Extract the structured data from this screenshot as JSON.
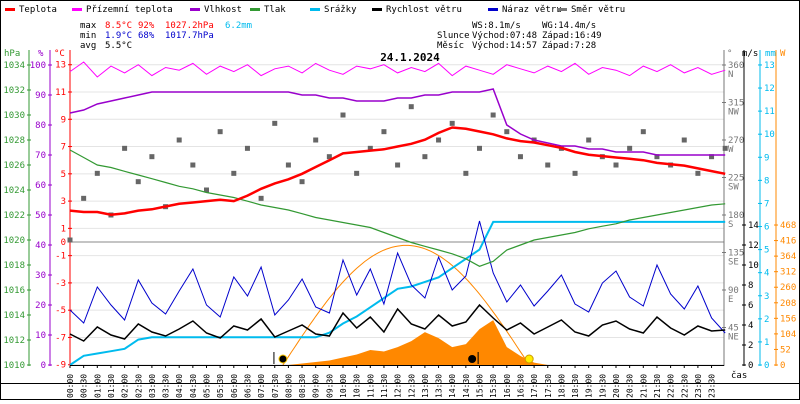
{
  "chart_data": {
    "type": "line",
    "title": "24.1.2024",
    "legend": [
      {
        "name": "Teplota",
        "color": "#ff0000"
      },
      {
        "name": "Přízemní teplota",
        "color": "#ff00ff"
      },
      {
        "name": "Vlhkost",
        "color": "#9900cc"
      },
      {
        "name": "Tlak",
        "color": "#339933"
      },
      {
        "name": "Srážky",
        "color": "#00bbee"
      },
      {
        "name": "Rychlost větru",
        "color": "#000000"
      },
      {
        "name": "Náraz větru",
        "color": "#0000cc"
      },
      {
        "name": "Směr větru",
        "color": "#777777"
      }
    ],
    "stats": {
      "max_label": "max",
      "min_label": "min",
      "avg_label": "avg",
      "max_temp": "8.5°C",
      "max_hum": "92%",
      "max_press": "1027.2hPa",
      "max_rain": "6.2mm",
      "min_temp": "1.9°C",
      "min_hum": "68%",
      "min_press": "1017.7hPa",
      "avg_temp": "5.5°C",
      "ws": "WS:8.1m/s",
      "wg": "WG:14.4m/s",
      "sun_label": "Slunce",
      "sun_rise": "Východ:07:48",
      "sun_set": "Západ:16:49",
      "moon_label": "Měsíc",
      "moon_rise": "Východ:14:57",
      "moon_set": "Západ:7:28"
    },
    "sun_times_h": {
      "moonset": 7.47,
      "sunrise": 7.8,
      "moonrise": 14.95,
      "sunset": 16.82
    },
    "clear_sky_peak_w": 400,
    "xlabel": "čas",
    "x_step_h": 0.5,
    "x_labels": [
      "00:00",
      "00:30",
      "01:00",
      "01:30",
      "02:00",
      "02:30",
      "03:00",
      "03:30",
      "04:00",
      "04:30",
      "05:00",
      "05:30",
      "06:00",
      "06:30",
      "07:00",
      "07:30",
      "08:00",
      "08:30",
      "09:00",
      "09:30",
      "10:00",
      "10:30",
      "11:00",
      "11:30",
      "12:00",
      "12:30",
      "13:00",
      "13:30",
      "14:00",
      "14:30",
      "15:00",
      "15:30",
      "16:00",
      "16:30",
      "17:00",
      "17:30",
      "18:00",
      "18:30",
      "19:00",
      "19:30",
      "20:00",
      "20:30",
      "21:00",
      "21:30",
      "22:00",
      "22:30",
      "23:00",
      "23:30"
    ],
    "axes": {
      "hpa": {
        "unit": "hPa",
        "range": [
          1010,
          1034
        ],
        "ticks": [
          "1010",
          "1012",
          "1014",
          "1016",
          "1018",
          "1020",
          "1022",
          "1024",
          "1026",
          "1028",
          "1030",
          "1032",
          "1034"
        ]
      },
      "percent": {
        "unit": "%",
        "range": [
          0,
          100
        ],
        "ticks": [
          "0",
          "10",
          "20",
          "30",
          "40",
          "50",
          "60",
          "70",
          "80",
          "90",
          "100"
        ]
      },
      "celsius": {
        "unit": "°C",
        "range": [
          -9,
          13
        ],
        "ticks": [
          "-9",
          "-7",
          "-5",
          "-3",
          "-1",
          "0",
          "1",
          "3",
          "5",
          "7",
          "9",
          "11",
          "13"
        ]
      },
      "degrees": {
        "unit": "°",
        "range": [
          0,
          360
        ],
        "ticks": [
          "45",
          "90",
          "135",
          "180",
          "225",
          "270",
          "315",
          "360"
        ],
        "compass": [
          "NE",
          "E",
          "SE",
          "S",
          "SW",
          "W",
          "NW",
          "N"
        ]
      },
      "ms": {
        "unit": "m/s",
        "range": [
          0,
          14
        ],
        "ticks": [
          "0",
          "2",
          "4",
          "6",
          "8",
          "10",
          "12",
          "14"
        ]
      },
      "mm": {
        "unit": "mm",
        "range": [
          0,
          13
        ],
        "ticks": [
          "0",
          "1",
          "2",
          "3",
          "4",
          "5",
          "6",
          "7",
          "8",
          "9",
          "10",
          "11",
          "12",
          "13"
        ]
      },
      "watt": {
        "unit": "W",
        "range": [
          0,
          468
        ],
        "ticks": [
          "0",
          "52",
          "104",
          "156",
          "208",
          "260",
          "312",
          "364",
          "416",
          "468"
        ]
      }
    },
    "series": {
      "temperature": [
        2.3,
        2.2,
        2.2,
        2.0,
        2.1,
        2.3,
        2.4,
        2.6,
        2.8,
        2.9,
        3.0,
        3.1,
        3.0,
        3.4,
        3.9,
        4.3,
        4.6,
        5.0,
        5.5,
        6.0,
        6.5,
        6.6,
        6.7,
        6.8,
        7.0,
        7.2,
        7.5,
        8.0,
        8.4,
        8.3,
        8.1,
        7.9,
        7.6,
        7.4,
        7.3,
        7.1,
        6.9,
        6.6,
        6.4,
        6.3,
        6.2,
        6.1,
        6.0,
        5.8,
        5.7,
        5.6,
        5.4,
        5.2,
        5.0
      ],
      "ground_temperature": [
        12.5,
        13.2,
        12.1,
        12.9,
        12.4,
        13.0,
        12.2,
        12.8,
        12.6,
        13.1,
        12.3,
        12.9,
        12.5,
        13.0,
        12.2,
        12.7,
        12.9,
        12.4,
        13.1,
        12.6,
        12.3,
        12.9,
        12.7,
        13.0,
        12.4,
        12.8,
        12.5,
        13.1,
        12.2,
        12.9,
        12.6,
        12.3,
        13.0,
        12.7,
        12.4,
        12.9,
        12.5,
        13.1,
        12.3,
        12.8,
        12.6,
        12.2,
        12.9,
        12.5,
        13.0,
        12.4,
        12.8,
        12.3,
        12.6
      ],
      "humidity": [
        84,
        85,
        87,
        88,
        89,
        90,
        91,
        91,
        91,
        91,
        91,
        91,
        91,
        91,
        91,
        91,
        91,
        90,
        90,
        89,
        89,
        88,
        88,
        88,
        89,
        89,
        90,
        90,
        91,
        91,
        91,
        92,
        80,
        77,
        75,
        74,
        73,
        73,
        72,
        72,
        71,
        71,
        71,
        70,
        70,
        70,
        70,
        70,
        70
      ],
      "pressure": [
        1027.2,
        1026.6,
        1026.0,
        1025.8,
        1025.5,
        1025.2,
        1024.9,
        1024.6,
        1024.3,
        1024.1,
        1023.8,
        1023.6,
        1023.4,
        1023.1,
        1022.8,
        1022.6,
        1022.4,
        1022.1,
        1021.8,
        1021.6,
        1021.4,
        1021.2,
        1021.0,
        1020.6,
        1020.2,
        1019.8,
        1019.5,
        1019.2,
        1018.9,
        1018.5,
        1017.9,
        1018.3,
        1019.2,
        1019.6,
        1020.0,
        1020.2,
        1020.4,
        1020.6,
        1020.9,
        1021.1,
        1021.3,
        1021.6,
        1021.8,
        1022.0,
        1022.2,
        1022.4,
        1022.6,
        1022.8,
        1022.9
      ],
      "precipitation": [
        0,
        0.4,
        0.5,
        0.6,
        0.7,
        1.1,
        1.2,
        1.2,
        1.2,
        1.2,
        1.2,
        1.2,
        1.2,
        1.2,
        1.2,
        1.2,
        1.2,
        1.2,
        1.2,
        1.4,
        1.8,
        2.1,
        2.5,
        2.9,
        3.3,
        3.4,
        3.6,
        3.8,
        4.2,
        4.6,
        5.0,
        6.2,
        6.2,
        6.2,
        6.2,
        6.2,
        6.2,
        6.2,
        6.2,
        6.2,
        6.2,
        6.2,
        6.2,
        6.2,
        6.2,
        6.2,
        6.2,
        6.2,
        6.2
      ],
      "wind_speed": [
        3.1,
        2.4,
        3.8,
        3.0,
        2.6,
        4.1,
        3.3,
        2.9,
        3.6,
        4.4,
        3.2,
        2.7,
        3.9,
        3.5,
        4.6,
        2.8,
        3.4,
        4.0,
        3.1,
        2.9,
        5.2,
        3.7,
        4.8,
        3.3,
        5.6,
        4.1,
        3.6,
        5.0,
        3.9,
        4.3,
        6.0,
        4.7,
        3.5,
        4.2,
        3.1,
        3.8,
        4.5,
        3.3,
        2.9,
        4.0,
        4.4,
        3.6,
        3.2,
        4.8,
        3.7,
        3.0,
        3.9,
        3.4,
        3.5
      ],
      "wind_gust": [
        5.5,
        4.2,
        7.8,
        6.0,
        4.5,
        8.5,
        6.2,
        5.1,
        7.4,
        9.6,
        6.0,
        4.8,
        8.8,
        6.9,
        9.8,
        5.0,
        6.5,
        8.6,
        5.8,
        5.2,
        10.5,
        7.0,
        9.6,
        6.1,
        11.2,
        8.0,
        6.7,
        10.8,
        7.5,
        8.9,
        14.4,
        9.2,
        6.3,
        8.0,
        5.9,
        7.4,
        9.0,
        6.1,
        5.3,
        8.2,
        9.4,
        6.8,
        5.9,
        10.0,
        7.1,
        5.6,
        7.9,
        4.7,
        3.2
      ],
      "wind_direction": [
        150,
        200,
        230,
        180,
        260,
        220,
        250,
        190,
        270,
        240,
        210,
        280,
        230,
        260,
        200,
        290,
        240,
        220,
        270,
        250,
        300,
        230,
        260,
        280,
        240,
        310,
        250,
        270,
        290,
        230,
        260,
        300,
        280,
        250,
        270,
        240,
        260,
        230,
        270,
        250,
        240,
        260,
        280,
        250,
        240,
        270,
        230,
        250,
        260
      ],
      "solar_radiation": [
        0,
        0,
        0,
        0,
        0,
        0,
        0,
        0,
        0,
        0,
        0,
        0,
        0,
        0,
        0,
        0,
        0,
        5,
        10,
        15,
        25,
        35,
        50,
        45,
        60,
        80,
        110,
        90,
        60,
        70,
        120,
        150,
        60,
        30,
        8,
        0,
        0,
        0,
        0,
        0,
        0,
        0,
        0,
        0,
        0,
        0,
        0,
        0,
        0
      ]
    }
  }
}
